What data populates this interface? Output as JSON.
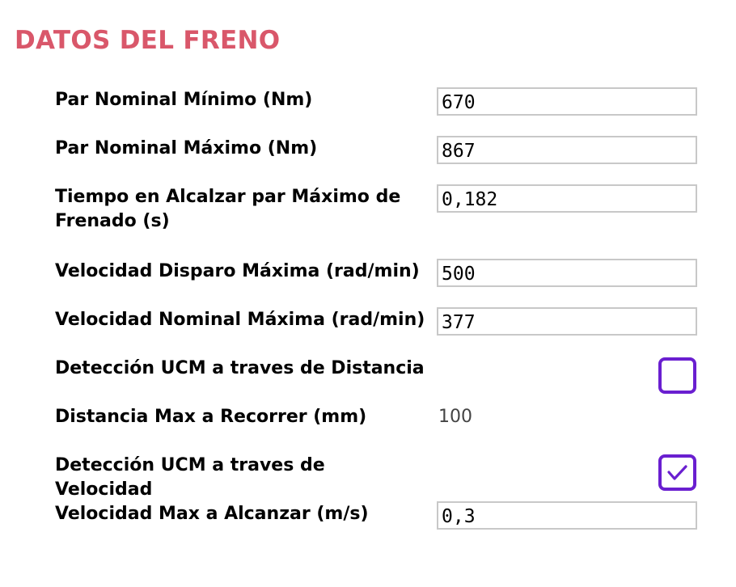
{
  "title": "DATOS DEL FRENO",
  "fields": [
    {
      "label": "Par Nominal Mínimo (Nm)",
      "value": "670"
    },
    {
      "label": "Par Nominal Máximo (Nm)",
      "value": "867"
    },
    {
      "label": "Tiempo en Alcalzar par Máximo de Frenado (s)",
      "value": "0,182"
    },
    {
      "label": "Velocidad Disparo Máxima (rad/min)",
      "value": "500"
    },
    {
      "label": "Velocidad Nominal Máxima (rad/min)",
      "value": "377"
    },
    {
      "label": "Detección UCM a traves de Distancia",
      "checked": false
    },
    {
      "label": "Distancia Max a Recorrer (mm)",
      "value": "100"
    },
    {
      "label": "Detección UCM a traves de Velocidad",
      "checked": true
    },
    {
      "label": "Velocidad Max a Alcanzar (m/s)",
      "value": "0,3"
    }
  ],
  "colors": {
    "title": "#d9576a",
    "checkbox_border": "#6a1fd0",
    "field_border": "#c8c8c8"
  }
}
